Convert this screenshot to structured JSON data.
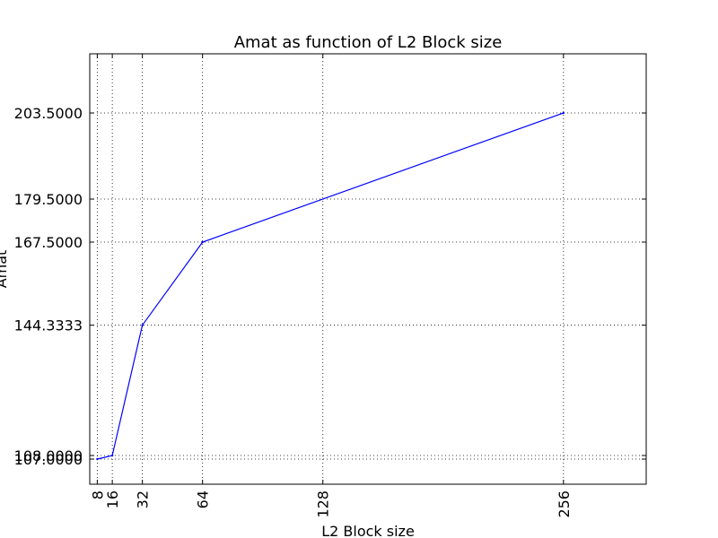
{
  "chart_data": {
    "type": "line",
    "title": "Amat as function of L2 Block size",
    "xlabel": "L2 Block size",
    "ylabel": "Amat",
    "grid": true,
    "xlim": [
      4,
      300
    ],
    "ylim": [
      100,
      220
    ],
    "x_ticks": [
      8,
      16,
      32,
      64,
      128,
      256
    ],
    "x_tick_labels": [
      "8",
      "16",
      "32",
      "64",
      "128",
      "256"
    ],
    "y_ticks": [
      107.0,
      108.0,
      144.3333,
      167.5,
      179.5,
      203.5
    ],
    "y_tick_labels": [
      "107.0000",
      "108.0000",
      "144.3333",
      "167.5000",
      "179.5000",
      "203.5000"
    ],
    "series": [
      {
        "color": "#0000ff",
        "x": [
          8,
          16,
          32,
          64,
          256
        ],
        "y": [
          107.0,
          108.0,
          144.3333,
          167.5,
          203.5
        ]
      }
    ]
  }
}
